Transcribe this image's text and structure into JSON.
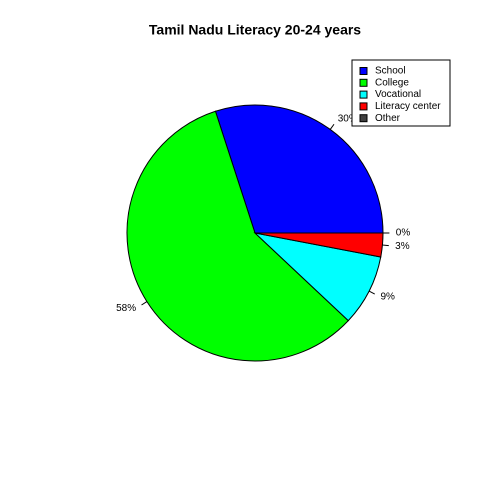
{
  "chart_data": {
    "type": "pie",
    "title": "Tamil Nadu Literacy 20-24 years",
    "categories": [
      "School",
      "College",
      "Vocational",
      "Literacy center",
      "Other"
    ],
    "values": [
      30,
      58,
      9,
      3,
      0
    ],
    "value_labels": [
      "30%",
      "58%",
      "9%",
      "3%",
      "0%"
    ],
    "colors": [
      "#0000ff",
      "#00ff00",
      "#00ffff",
      "#ff0000",
      "#404040"
    ],
    "legend": "topright"
  }
}
